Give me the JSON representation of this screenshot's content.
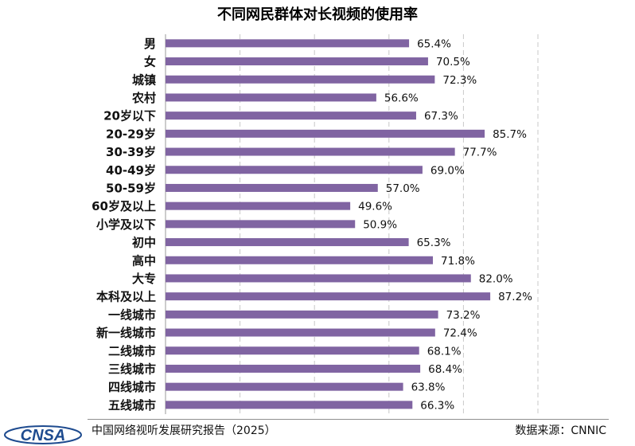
{
  "chart_data": {
    "type": "bar",
    "orientation": "horizontal",
    "title": "不同网民群体对长视频的使用率",
    "categories": [
      "男",
      "女",
      "城镇",
      "农村",
      "20岁以下",
      "20-29岁",
      "30-39岁",
      "40-49岁",
      "50-59岁",
      "60岁及以上",
      "小学及以下",
      "初中",
      "高中",
      "大专",
      "本科及以上",
      "一线城市",
      "新一线城市",
      "二线城市",
      "三线城市",
      "四线城市",
      "五线城市"
    ],
    "values": [
      65.4,
      70.5,
      72.3,
      56.6,
      67.3,
      85.7,
      77.7,
      69.0,
      57.0,
      49.6,
      50.9,
      65.3,
      71.8,
      82.0,
      87.2,
      73.2,
      72.4,
      68.1,
      68.4,
      63.8,
      66.3
    ],
    "value_labels": [
      "65.4%",
      "70.5%",
      "72.3%",
      "56.6%",
      "67.3%",
      "85.7%",
      "77.7%",
      "69.0%",
      "57.0%",
      "49.6%",
      "50.9%",
      "65.3%",
      "71.8%",
      "82.0%",
      "87.2%",
      "73.2%",
      "72.4%",
      "68.1%",
      "68.4%",
      "63.8%",
      "66.3%"
    ],
    "xlim": [
      0,
      100
    ],
    "grid": "dashed vertical",
    "bar_color": "#8064a2"
  },
  "footer": {
    "logo_text": "CNSA",
    "report": "中国网络视听发展研究报告（2025）",
    "source": "数据来源：CNNIC"
  }
}
